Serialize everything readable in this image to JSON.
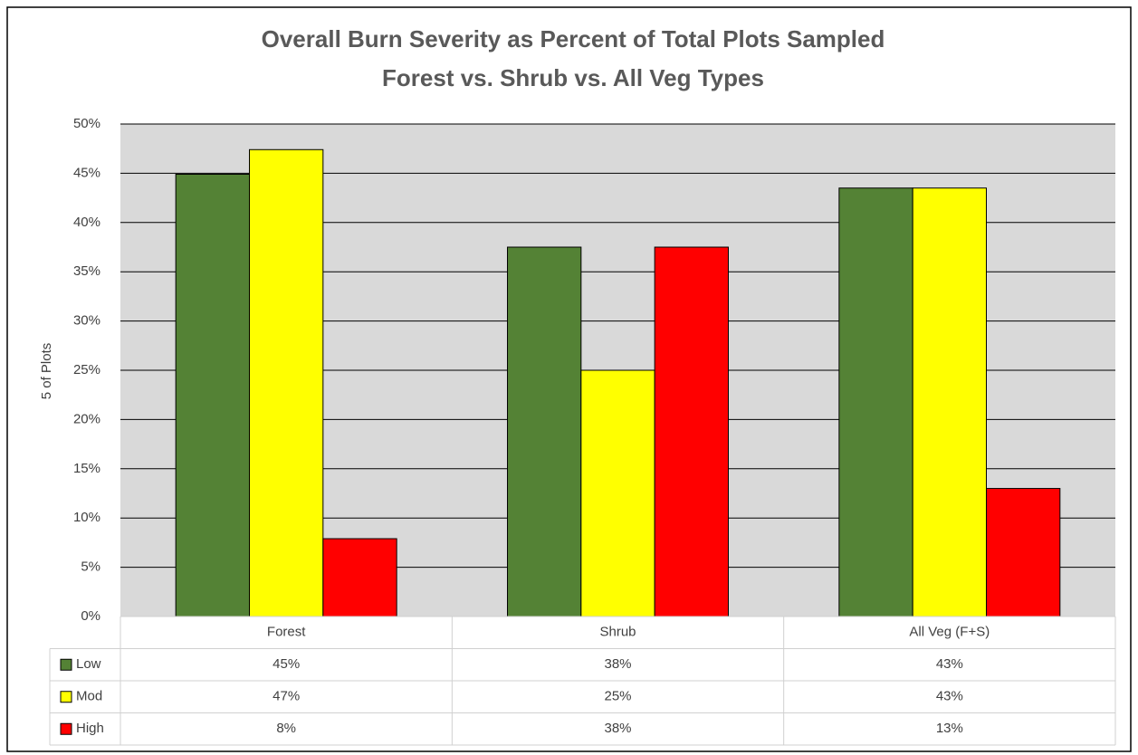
{
  "chart_data": {
    "type": "bar",
    "title": "Overall Burn Severity as Percent of Total Plots Sampled",
    "subtitle": "Forest vs. Shrub vs. All Veg Types",
    "y_label": "5 of Plots",
    "categories": [
      "Forest",
      "Shrub",
      "All Veg (F+S)"
    ],
    "series": [
      {
        "name": "Low",
        "color": "#548235",
        "values": [
          44.9,
          37.5,
          43.5
        ],
        "value_labels": [
          "45%",
          "38%",
          "43%"
        ]
      },
      {
        "name": "Mod",
        "color": "#ffff00",
        "values": [
          47.4,
          25,
          43.5
        ],
        "value_labels": [
          "47%",
          "25%",
          "43%"
        ]
      },
      {
        "name": "High",
        "color": "#ff0000",
        "values": [
          7.9,
          37.5,
          13
        ],
        "value_labels": [
          "8%",
          "38%",
          "13%"
        ]
      }
    ],
    "ylim": [
      0,
      50
    ],
    "yticks": [
      {
        "value": 0,
        "label": "0%"
      },
      {
        "value": 5,
        "label": "5%"
      },
      {
        "value": 10,
        "label": "10%"
      },
      {
        "value": 15,
        "label": "15%"
      },
      {
        "value": 20,
        "label": "20%"
      },
      {
        "value": 25,
        "label": "25%"
      },
      {
        "value": 30,
        "label": "30%"
      },
      {
        "value": 35,
        "label": "35%"
      },
      {
        "value": 40,
        "label": "40%"
      },
      {
        "value": 45,
        "label": "45%"
      },
      {
        "value": 50,
        "label": "50%"
      }
    ],
    "grid": true
  }
}
